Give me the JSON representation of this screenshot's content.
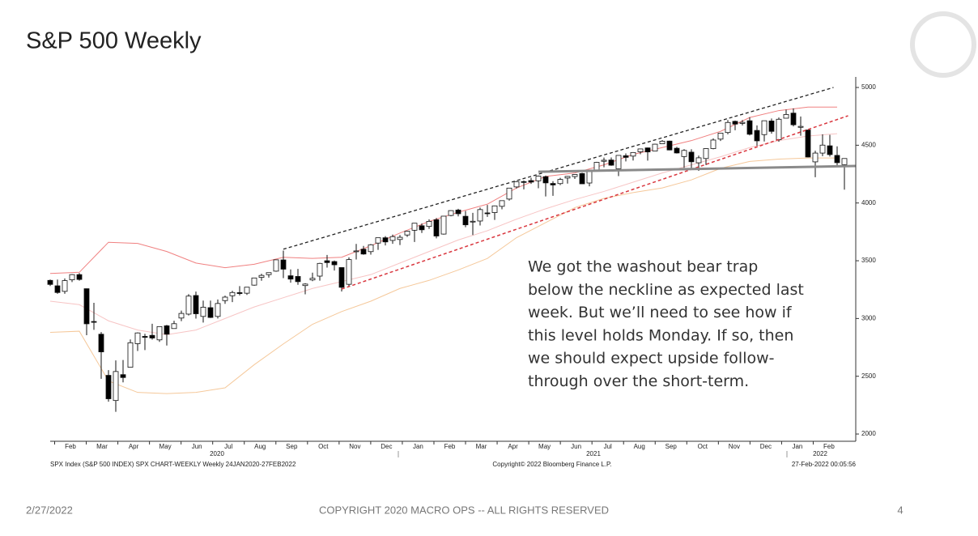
{
  "slide": {
    "title": "S&P 500 Weekly",
    "date": "2/27/2022",
    "footer": "COPYRIGHT 2020 MACRO OPS -- ALL RIGHTS RESERVED",
    "page": "4"
  },
  "chart_data": {
    "type": "candlestick",
    "ylim": [
      1940,
      5090
    ],
    "yticks": [
      2000,
      2500,
      3000,
      3500,
      4000,
      4500,
      5000
    ],
    "months": [
      "Feb",
      "Mar",
      "Apr",
      "May",
      "Jun",
      "Jul",
      "Aug",
      "Sep",
      "Oct",
      "Nov",
      "Dec",
      "Jan",
      "Feb",
      "Mar",
      "Apr",
      "May",
      "Jun",
      "Jul",
      "Aug",
      "Sep",
      "Oct",
      "Nov",
      "Dec",
      "Jan",
      "Feb"
    ],
    "years": [
      "2020",
      "2021",
      "2022"
    ],
    "open": [
      3330,
      3283,
      3235,
      3335,
      3380,
      3258,
      2974,
      2864,
      2508,
      2290,
      2514,
      2578,
      2782,
      2845,
      2854,
      2815,
      2937,
      2913,
      3004,
      3038,
      3199,
      3018,
      3094,
      3018,
      3155,
      3197,
      3224,
      3219,
      3289,
      3356,
      3380,
      3410,
      3507,
      3370,
      3364,
      3285,
      3334,
      3367,
      3500,
      3493,
      3441,
      3296,
      3583,
      3600,
      3579,
      3653,
      3699,
      3676,
      3684,
      3723,
      3764,
      3803,
      3797,
      3855,
      3731,
      3892,
      3939,
      3885,
      3842,
      3844,
      3914,
      3917,
      3971,
      4034,
      4139,
      4185,
      4194,
      4192,
      4228,
      4169,
      4168,
      4216,
      4229,
      4255,
      4173,
      4285,
      4361,
      4372,
      4296,
      4409,
      4406,
      4443,
      4477,
      4450,
      4513,
      4536,
      4474,
      4402,
      4440,
      4348,
      4385,
      4471,
      4553,
      4610,
      4707,
      4689,
      4712,
      4628,
      4592,
      4710,
      4548,
      4734,
      4778,
      4655,
      4632,
      4356,
      4432,
      4495,
      4412,
      4332
    ],
    "high": [
      3337,
      3337,
      3347,
      3385,
      3393,
      3259,
      3136,
      2883,
      2553,
      2637,
      2641,
      2819,
      2880,
      2868,
      2954,
      2932,
      2945,
      2981,
      3068,
      3211,
      3233,
      3155,
      3155,
      3165,
      3198,
      3240,
      3280,
      3272,
      3352,
      3387,
      3399,
      3509,
      3588,
      3425,
      3429,
      3306,
      3397,
      3482,
      3550,
      3502,
      3441,
      3529,
      3646,
      3628,
      3645,
      3699,
      3713,
      3726,
      3723,
      3760,
      3826,
      3823,
      3859,
      3870,
      3887,
      3937,
      3950,
      3931,
      3915,
      3960,
      3983,
      3978,
      4021,
      4129,
      4191,
      4195,
      4218,
      4238,
      4237,
      4189,
      4218,
      4234,
      4250,
      4262,
      4287,
      4356,
      4393,
      4394,
      4415,
      4429,
      4440,
      4470,
      4480,
      4513,
      4545,
      4539,
      4486,
      4466,
      4465,
      4411,
      4475,
      4560,
      4608,
      4718,
      4714,
      4718,
      4743,
      4672,
      4713,
      4731,
      4740,
      4808,
      4819,
      4749,
      4632,
      4453,
      4595,
      4590,
      4490,
      4385
    ],
    "low": [
      3281,
      3214,
      3214,
      3315,
      3328,
      2855,
      2902,
      2478,
      2280,
      2192,
      2447,
      2576,
      2719,
      2727,
      2817,
      2798,
      2766,
      2913,
      2977,
      3026,
      2999,
      2965,
      3004,
      3000,
      3127,
      3142,
      3200,
      3204,
      3284,
      3327,
      3354,
      3405,
      3350,
      3310,
      3292,
      3209,
      3323,
      3328,
      3441,
      3415,
      3234,
      3279,
      3511,
      3552,
      3553,
      3594,
      3633,
      3647,
      3636,
      3706,
      3662,
      3740,
      3775,
      3694,
      3726,
      3885,
      3884,
      3790,
      3723,
      3805,
      3880,
      3853,
      3945,
      4021,
      4126,
      4118,
      4165,
      4128,
      4057,
      4062,
      4155,
      4168,
      4208,
      4165,
      4144,
      4271,
      4309,
      4322,
      4233,
      4360,
      4368,
      4422,
      4367,
      4450,
      4513,
      4456,
      4428,
      4305,
      4288,
      4278,
      4329,
      4465,
      4537,
      4595,
      4630,
      4672,
      4585,
      4495,
      4532,
      4600,
      4531,
      4733,
      4663,
      4582,
      4395,
      4223,
      4405,
      4402,
      4318,
      4115
    ],
    "close": [
      3295,
      3225,
      3328,
      3380,
      3338,
      2954,
      2972,
      2711,
      2305,
      2541,
      2489,
      2790,
      2875,
      2837,
      2831,
      2930,
      2864,
      2955,
      3044,
      3194,
      3041,
      3098,
      3009,
      3130,
      3185,
      3225,
      3216,
      3271,
      3351,
      3373,
      3397,
      3508,
      3427,
      3341,
      3319,
      3298,
      3348,
      3477,
      3484,
      3465,
      3270,
      3510,
      3585,
      3558,
      3638,
      3699,
      3663,
      3709,
      3703,
      3756,
      3825,
      3768,
      3841,
      3714,
      3886,
      3934,
      3907,
      3811,
      3842,
      3943,
      3913,
      3975,
      4020,
      4129,
      4185,
      4180,
      4181,
      4233,
      4174,
      4156,
      4204,
      4230,
      4247,
      4166,
      4281,
      4352,
      4370,
      4327,
      4412,
      4395,
      4437,
      4468,
      4442,
      4509,
      4535,
      4459,
      4433,
      4455,
      4357,
      4391,
      4471,
      4545,
      4605,
      4697,
      4683,
      4698,
      4595,
      4538,
      4712,
      4620,
      4725,
      4766,
      4677,
      4663,
      4398,
      4432,
      4501,
      4419,
      4349,
      4385
    ],
    "bands": [
      {
        "color": "#f08080",
        "values": [
          3390,
          3400,
          3660,
          3650,
          3580,
          3480,
          3440,
          3470,
          3530,
          3520,
          3530,
          3630,
          3740,
          3840,
          3920,
          3990,
          4130,
          4230,
          4260,
          4330,
          4420,
          4480,
          4540,
          4620,
          4740,
          4800,
          4830,
          4830
        ]
      },
      {
        "color": "#f7c4c4",
        "values": [
          3150,
          3120,
          2980,
          2900,
          2860,
          2900,
          3000,
          3100,
          3180,
          3260,
          3320,
          3380,
          3480,
          3580,
          3680,
          3760,
          3860,
          3950,
          4030,
          4100,
          4180,
          4260,
          4330,
          4400,
          4480,
          4540,
          4580,
          4600
        ]
      },
      {
        "color": "#f5c89a",
        "values": [
          2880,
          2890,
          2460,
          2360,
          2350,
          2360,
          2400,
          2600,
          2780,
          2950,
          3060,
          3150,
          3260,
          3330,
          3420,
          3520,
          3700,
          3830,
          3960,
          4040,
          4090,
          4130,
          4200,
          4300,
          4360,
          4380,
          4390,
          4390
        ]
      }
    ],
    "trendlines": [
      {
        "color": "#222222",
        "dash": "4 3",
        "width": 1.3,
        "x": [
          32,
          107.5
        ],
        "values": [
          3600,
          5000
        ]
      },
      {
        "color": "#d9363e",
        "dash": "4 3",
        "width": 1.5,
        "x": [
          40,
          109.5
        ],
        "values": [
          3255,
          4755
        ]
      },
      {
        "color": "#8a8a8a",
        "dash": "none",
        "width": 3,
        "x": [
          67,
          110.5
        ],
        "values": [
          4270,
          4320
        ]
      }
    ],
    "annotation": [
      "We got the washout bear trap",
      "below the neckline as expected last",
      "week. But we’ll need to see how if",
      "this level holds Monday. If so, then",
      "we should expect upside follow-",
      "through over the short-term."
    ],
    "source_left": "SPX Index (S&P 500 INDEX) SPX CHART-WEEKLY  Weekly 24JAN2020-27FEB2022",
    "source_center": "Copyright© 2022 Bloomberg Finance L.P.",
    "source_right": "27-Feb-2022 00:05:56"
  }
}
